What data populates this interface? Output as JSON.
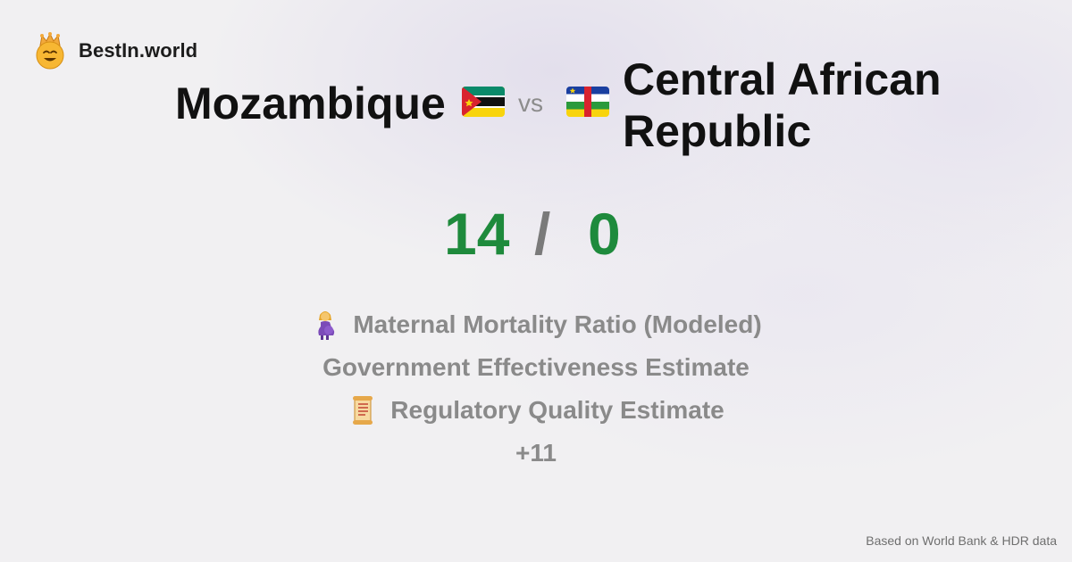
{
  "brand": {
    "name": "BestIn.world",
    "logo_icon": "crowned-smiley-icon"
  },
  "comparison": {
    "left_country": "Mozambique",
    "left_flag_icon": "mozambique-flag-icon",
    "vs_label": "vs",
    "right_country": "Central African Republic",
    "right_flag_icon": "central-african-republic-flag-icon"
  },
  "score": {
    "left": "14",
    "separator": "/",
    "right": "0",
    "color": "#1e8a3c"
  },
  "metrics": [
    {
      "label": "Maternal Mortality Ratio (Modeled)",
      "icon": "pregnant-woman-icon"
    },
    {
      "label": "Government Effectiveness Estimate",
      "icon": ""
    },
    {
      "label": "Regulatory Quality Estimate",
      "icon": "scroll-icon"
    },
    {
      "label": "+11",
      "icon": ""
    }
  ],
  "footer": {
    "source_note": "Based on World Bank & HDR data"
  }
}
